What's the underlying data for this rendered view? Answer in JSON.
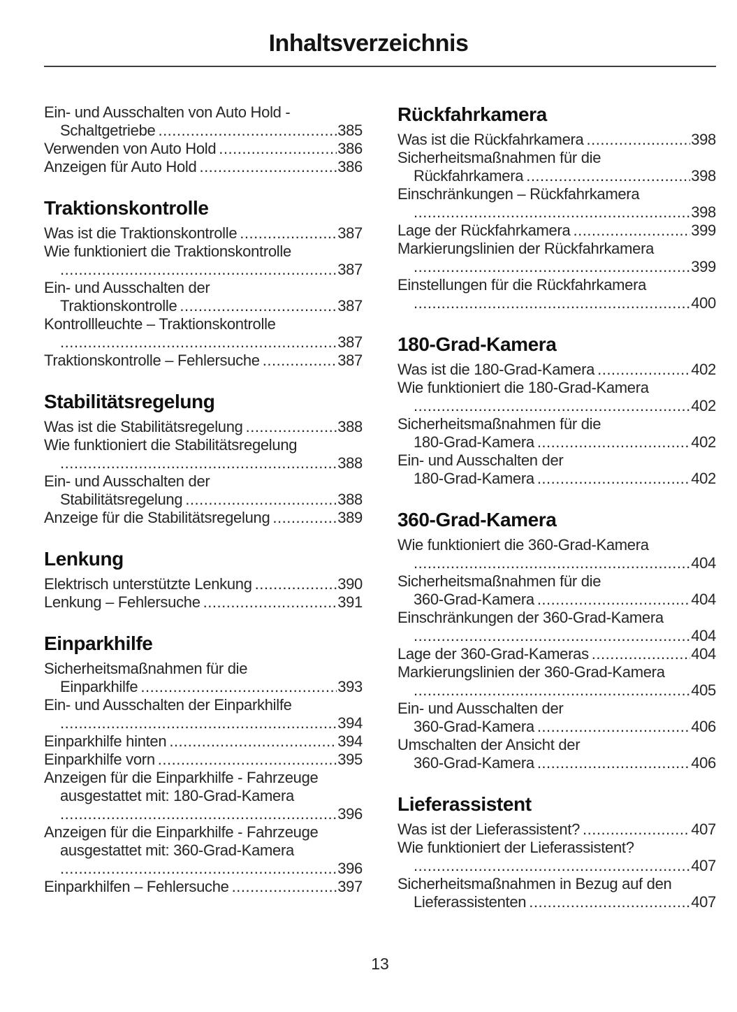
{
  "header": {
    "title": "Inhaltsverzeichnis"
  },
  "footer": {
    "page_number": "13"
  },
  "toc": {
    "columns": [
      {
        "sections": [
          {
            "heading": "",
            "entries": [
              {
                "pre_lines": [
                  "Ein- und Ausschalten von Auto Hold -"
                ],
                "last_text": "Schaltgetriebe",
                "page": "385"
              },
              {
                "pre_lines": [],
                "last_text": "Verwenden von Auto Hold",
                "page": "386"
              },
              {
                "pre_lines": [],
                "last_text": "Anzeigen für Auto Hold",
                "page": "386"
              }
            ]
          },
          {
            "heading": "Traktionskontrolle",
            "entries": [
              {
                "pre_lines": [],
                "last_text": "Was ist die Traktionskontrolle",
                "page": "387"
              },
              {
                "pre_lines": [
                  "Wie funktioniert die Traktionskontrolle"
                ],
                "last_text": "",
                "page": "387"
              },
              {
                "pre_lines": [
                  "Ein- und Ausschalten der"
                ],
                "last_text": "Traktionskontrolle",
                "page": "387"
              },
              {
                "pre_lines": [
                  "Kontrollleuchte – Traktionskontrolle"
                ],
                "last_text": "",
                "page": "387"
              },
              {
                "pre_lines": [],
                "last_text": "Traktionskontrolle – Fehlersuche",
                "page": "387"
              }
            ]
          },
          {
            "heading": "Stabilitätsregelung",
            "entries": [
              {
                "pre_lines": [],
                "last_text": "Was ist die Stabilitätsregelung",
                "page": "388"
              },
              {
                "pre_lines": [
                  "Wie funktioniert die Stabilitätsregelung"
                ],
                "last_text": "",
                "page": "388"
              },
              {
                "pre_lines": [
                  "Ein- und Ausschalten der"
                ],
                "last_text": "Stabilitätsregelung",
                "page": "388"
              },
              {
                "pre_lines": [],
                "last_text": "Anzeige für die Stabilitätsregelung",
                "page": "389"
              }
            ]
          },
          {
            "heading": "Lenkung",
            "entries": [
              {
                "pre_lines": [],
                "last_text": "Elektrisch unterstützte Lenkung",
                "page": "390"
              },
              {
                "pre_lines": [],
                "last_text": "Lenkung – Fehlersuche",
                "page": "391"
              }
            ]
          },
          {
            "heading": "Einparkhilfe",
            "entries": [
              {
                "pre_lines": [
                  "Sicherheitsmaßnahmen für die"
                ],
                "last_text": "Einparkhilfe",
                "page": "393"
              },
              {
                "pre_lines": [
                  "Ein- und Ausschalten der Einparkhilfe"
                ],
                "last_text": "",
                "page": "394"
              },
              {
                "pre_lines": [],
                "last_text": "Einparkhilfe hinten",
                "page": "394"
              },
              {
                "pre_lines": [],
                "last_text": "Einparkhilfe vorn",
                "page": "395"
              },
              {
                "pre_lines": [
                  "Anzeigen für die Einparkhilfe - Fahrzeuge",
                  "ausgestattet mit: 180-Grad-Kamera"
                ],
                "last_text": "",
                "page": "396"
              },
              {
                "pre_lines": [
                  "Anzeigen für die Einparkhilfe - Fahrzeuge",
                  "ausgestattet mit: 360-Grad-Kamera"
                ],
                "last_text": "",
                "page": "396"
              },
              {
                "pre_lines": [],
                "last_text": "Einparkhilfen – Fehlersuche",
                "page": "397"
              }
            ]
          }
        ]
      },
      {
        "sections": [
          {
            "heading": "Rückfahrkamera",
            "entries": [
              {
                "pre_lines": [],
                "last_text": "Was ist die Rückfahrkamera",
                "page": "398"
              },
              {
                "pre_lines": [
                  "Sicherheitsmaßnahmen für die"
                ],
                "last_text": "Rückfahrkamera",
                "page": "398"
              },
              {
                "pre_lines": [
                  "Einschränkungen – Rückfahrkamera"
                ],
                "last_text": "",
                "page": "398"
              },
              {
                "pre_lines": [],
                "last_text": "Lage der Rückfahrkamera",
                "page": "399"
              },
              {
                "pre_lines": [
                  "Markierungslinien der Rückfahrkamera"
                ],
                "last_text": "",
                "page": "399"
              },
              {
                "pre_lines": [
                  "Einstellungen für die Rückfahrkamera"
                ],
                "last_text": "",
                "page": "400"
              }
            ]
          },
          {
            "heading": "180-Grad-Kamera",
            "entries": [
              {
                "pre_lines": [],
                "last_text": "Was ist die 180-Grad-Kamera",
                "page": "402"
              },
              {
                "pre_lines": [
                  "Wie funktioniert die 180-Grad-Kamera"
                ],
                "last_text": "",
                "page": "402"
              },
              {
                "pre_lines": [
                  "Sicherheitsmaßnahmen für die"
                ],
                "last_text": "180-Grad-Kamera",
                "page": "402"
              },
              {
                "pre_lines": [
                  "Ein- und Ausschalten der"
                ],
                "last_text": "180-Grad-Kamera",
                "page": "402"
              }
            ]
          },
          {
            "heading": "360-Grad-Kamera",
            "entries": [
              {
                "pre_lines": [
                  "Wie funktioniert die 360-Grad-Kamera"
                ],
                "last_text": "",
                "page": "404"
              },
              {
                "pre_lines": [
                  "Sicherheitsmaßnahmen für die"
                ],
                "last_text": "360-Grad-Kamera",
                "page": "404"
              },
              {
                "pre_lines": [
                  "Einschränkungen der 360-Grad-Kamera"
                ],
                "last_text": "",
                "page": "404"
              },
              {
                "pre_lines": [],
                "last_text": "Lage der 360-Grad-Kameras",
                "page": "404"
              },
              {
                "pre_lines": [
                  "Markierungslinien der 360-Grad-Kamera"
                ],
                "last_text": "",
                "page": "405"
              },
              {
                "pre_lines": [
                  "Ein- und Ausschalten der"
                ],
                "last_text": "360-Grad-Kamera",
                "page": "406"
              },
              {
                "pre_lines": [
                  "Umschalten der Ansicht der"
                ],
                "last_text": "360-Grad-Kamera",
                "page": "406"
              }
            ]
          },
          {
            "heading": "Lieferassistent",
            "entries": [
              {
                "pre_lines": [],
                "last_text": "Was ist der Lieferassistent?",
                "page": "407"
              },
              {
                "pre_lines": [
                  "Wie funktioniert der Lieferassistent?"
                ],
                "last_text": "",
                "page": "407"
              },
              {
                "pre_lines": [
                  "Sicherheitsmaßnahmen in Bezug auf den"
                ],
                "last_text": "Lieferassistenten",
                "page": "407"
              }
            ]
          }
        ]
      }
    ]
  }
}
